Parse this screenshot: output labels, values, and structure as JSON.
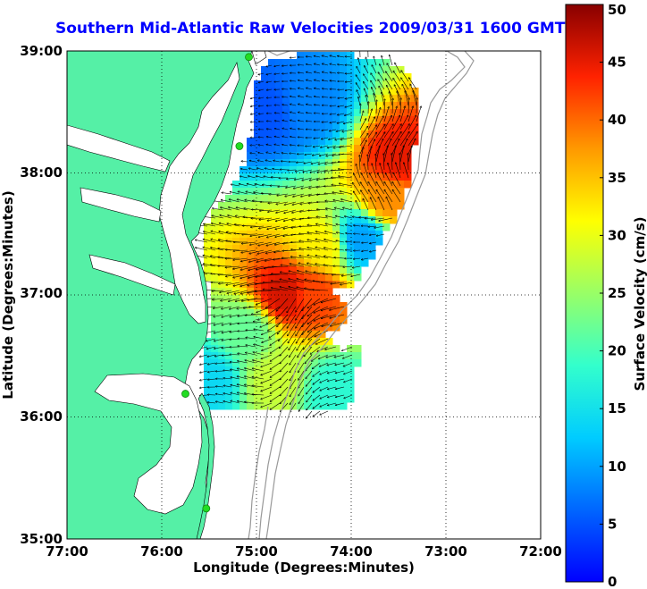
{
  "title": "Southern Mid-Atlantic Raw Velocities 2009/03/31 1600 GMT",
  "x_axis": {
    "label": "Longitude (Degrees:Minutes)",
    "ticks": [
      "77:00",
      "76:00",
      "75:00",
      "74:00",
      "73:00",
      "72:00"
    ]
  },
  "y_axis": {
    "label": "Latitude (Degrees:Minutes)",
    "ticks": [
      "39:00",
      "38:00",
      "37:00",
      "36:00",
      "35:00"
    ]
  },
  "colorbar": {
    "label": "Surface Velocity (cm/s)",
    "ticks": [
      "50",
      "45",
      "40",
      "35",
      "30",
      "25",
      "20",
      "15",
      "10",
      "5",
      "0"
    ],
    "min": 0,
    "max": 50
  },
  "colors": {
    "land": "#55f0a6",
    "title": "#0000ff",
    "station": "#22dd22",
    "bathymetry": "#999999"
  },
  "chart_data": {
    "type": "heatmap",
    "title": "Southern Mid-Atlantic Raw Velocities 2009/03/31 1600 GMT",
    "xlabel": "Longitude (Degrees:Minutes)",
    "ylabel": "Latitude (Degrees:Minutes)",
    "xlim": [
      -77,
      -72
    ],
    "ylim": [
      35,
      39
    ],
    "clim": [
      0,
      50
    ],
    "colorbar_label": "Surface Velocity (cm/s)",
    "grid": true,
    "stations": [
      {
        "lon": -75.08,
        "lat": 38.95
      },
      {
        "lon": -75.18,
        "lat": 38.22
      },
      {
        "lon": -75.75,
        "lat": 36.19
      },
      {
        "lon": -75.53,
        "lat": 35.25
      }
    ],
    "velocity_regions": [
      {
        "lon": -74.45,
        "lat": 38.55,
        "speed": 8
      },
      {
        "lon": -74.9,
        "lat": 38.5,
        "speed": 5
      },
      {
        "lon": -73.5,
        "lat": 38.1,
        "speed": 45
      },
      {
        "lon": -73.6,
        "lat": 37.8,
        "speed": 38
      },
      {
        "lon": -74.7,
        "lat": 37.0,
        "speed": 46
      },
      {
        "lon": -74.4,
        "lat": 37.0,
        "speed": 42
      },
      {
        "lon": -74.3,
        "lat": 37.4,
        "speed": 32
      },
      {
        "lon": -73.9,
        "lat": 37.45,
        "speed": 10
      },
      {
        "lon": -75.1,
        "lat": 36.7,
        "speed": 22
      },
      {
        "lon": -74.8,
        "lat": 36.3,
        "speed": 28
      },
      {
        "lon": -74.2,
        "lat": 36.2,
        "speed": 18
      },
      {
        "lon": -75.5,
        "lat": 36.3,
        "speed": 14
      }
    ]
  }
}
